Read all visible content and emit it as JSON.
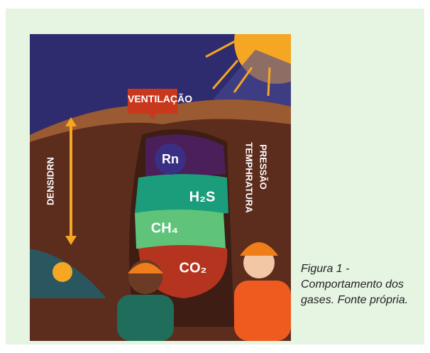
{
  "figure": {
    "illustration": {
      "ventilation": "VENTILAÇÃO",
      "density": "DENSIDRN",
      "temperature": "TEMPHRATURA",
      "pressure": "PRESSÃO",
      "gases": [
        "Rn",
        "H₂S",
        "CH₄",
        "CO₂"
      ]
    },
    "caption": "Figura 1 - Comportamento dos gases. Fonte própria."
  }
}
